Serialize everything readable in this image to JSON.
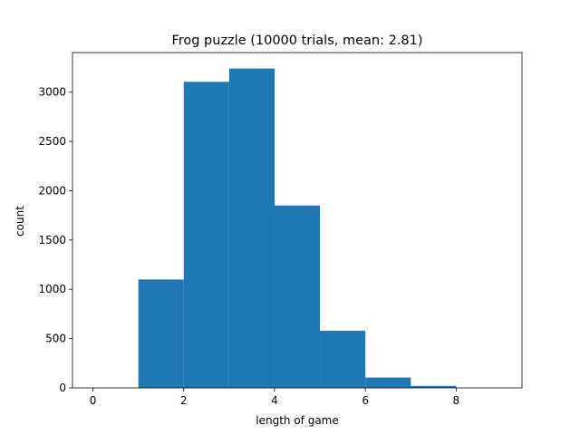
{
  "chart_data": {
    "type": "bar",
    "title": "Frog puzzle (10000 trials, mean: 2.81)",
    "xlabel": "length of game",
    "ylabel": "count",
    "bins": [
      {
        "x0": 0,
        "x1": 1,
        "count": 0
      },
      {
        "x0": 1,
        "x1": 2,
        "count": 1100
      },
      {
        "x0": 2,
        "x1": 3,
        "count": 3105
      },
      {
        "x0": 3,
        "x1": 4,
        "count": 3240
      },
      {
        "x0": 4,
        "x1": 5,
        "count": 1850
      },
      {
        "x0": 5,
        "x1": 6,
        "count": 580
      },
      {
        "x0": 6,
        "x1": 7,
        "count": 105
      },
      {
        "x0": 7,
        "x1": 8,
        "count": 20
      },
      {
        "x0": 8,
        "x1": 9,
        "count": 0
      }
    ],
    "xlim": [
      -0.45,
      9.45
    ],
    "ylim": [
      0,
      3402
    ],
    "xticks": [
      0,
      2,
      4,
      6,
      8
    ],
    "yticks": [
      0,
      500,
      1000,
      1500,
      2000,
      2500,
      3000
    ],
    "grid": false,
    "bar_color": "#1f77b4"
  }
}
